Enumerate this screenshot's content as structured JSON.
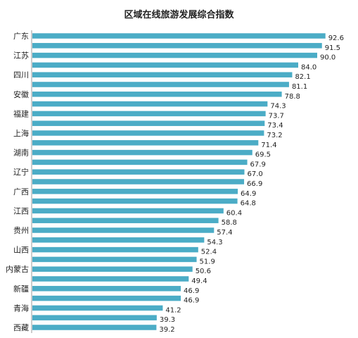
{
  "chart_data": {
    "type": "bar",
    "orientation": "horizontal",
    "title": "区域在线旅游发展综合指数",
    "categories": [
      "广东",
      "",
      "江苏",
      "",
      "四川",
      "",
      "安徽",
      "",
      "福建",
      "",
      "上海",
      "",
      "湖南",
      "",
      "辽宁",
      "",
      "广西",
      "",
      "江西",
      "",
      "贵州",
      "",
      "山西",
      "",
      "内蒙古",
      "",
      "新疆",
      "",
      "青海",
      "",
      "西藏"
    ],
    "values": [
      92.6,
      91.5,
      90.0,
      84.0,
      82.1,
      81.1,
      78.8,
      74.3,
      73.7,
      73.4,
      73.2,
      71.4,
      69.5,
      67.9,
      67.0,
      66.9,
      64.9,
      64.8,
      60.4,
      58.8,
      57.4,
      54.3,
      52.4,
      51.9,
      50.6,
      49.4,
      46.9,
      46.9,
      41.2,
      39.3,
      39.2
    ],
    "value_labels": [
      "92.6",
      "91.5",
      "90.0",
      "84.0",
      "82.1",
      "81.1",
      "78.8",
      "74.3",
      "73.7",
      "73.4",
      "73.2",
      "71.4",
      "69.5",
      "67.9",
      "67.0",
      "66.9",
      "64.9",
      "64.8",
      "60.4",
      "58.8",
      "57.4",
      "54.3",
      "52.4",
      "51.9",
      "50.6",
      "49.4",
      "46.9",
      "46.9",
      "41.2",
      "39.3",
      "39.2"
    ],
    "xlim": [
      0,
      100
    ],
    "grid": false,
    "legend": "none",
    "bar_color": "#4bacc6"
  }
}
